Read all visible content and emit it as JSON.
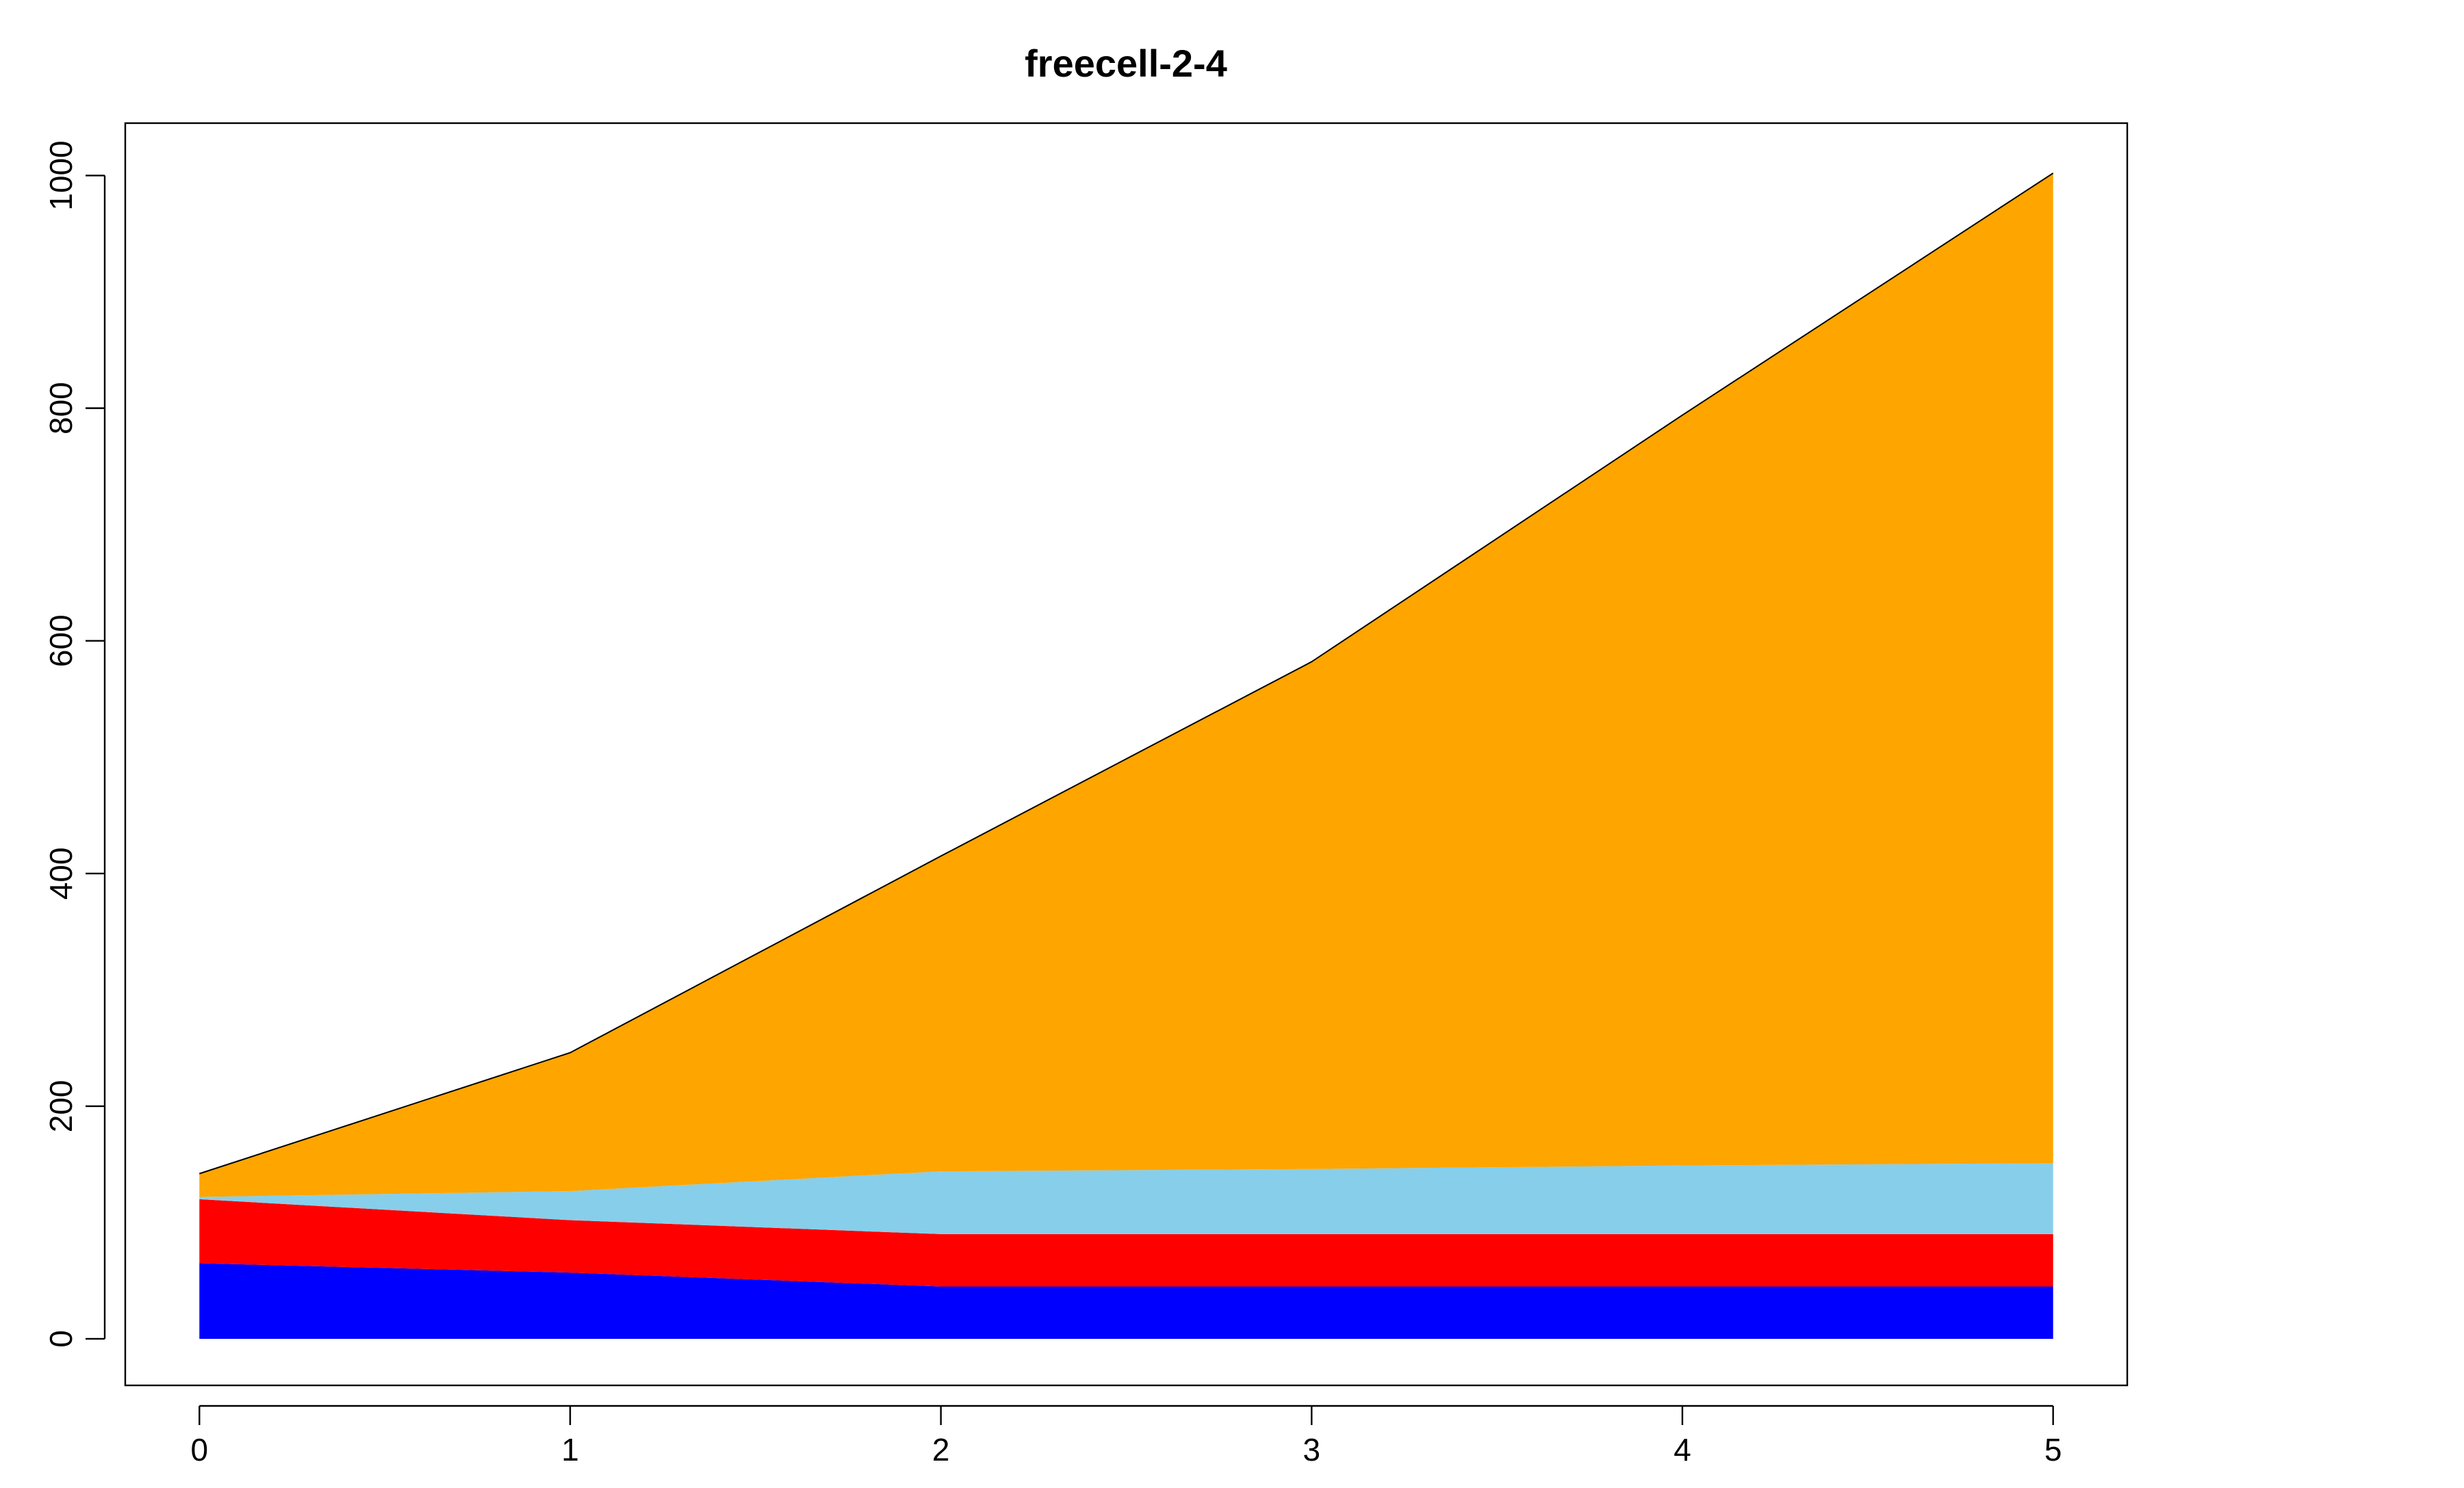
{
  "chart_data": {
    "type": "area",
    "stacked": true,
    "title": "freecell-2-4",
    "xlabel": "",
    "ylabel": "",
    "x": [
      0,
      1,
      2,
      3,
      4,
      5
    ],
    "x_ticks": [
      "0",
      "1",
      "2",
      "3",
      "4",
      "5"
    ],
    "y_ticks": [
      "0",
      "200",
      "400",
      "600",
      "800",
      "1000"
    ],
    "xlim": [
      -0.2,
      5.2
    ],
    "ylim": [
      -40,
      1045
    ],
    "grid": false,
    "legend": "none",
    "series": [
      {
        "color": "#0000ff",
        "values": [
          65,
          57,
          45,
          45,
          45,
          45
        ]
      },
      {
        "color": "#ff0000",
        "values": [
          55,
          45,
          45,
          45,
          45,
          45
        ]
      },
      {
        "color": "#87ceeb",
        "values": [
          2,
          25,
          54,
          56,
          59,
          61
        ]
      },
      {
        "color": "#ffa500",
        "values": [
          20,
          119,
          271,
          436,
          645,
          851
        ]
      }
    ]
  }
}
